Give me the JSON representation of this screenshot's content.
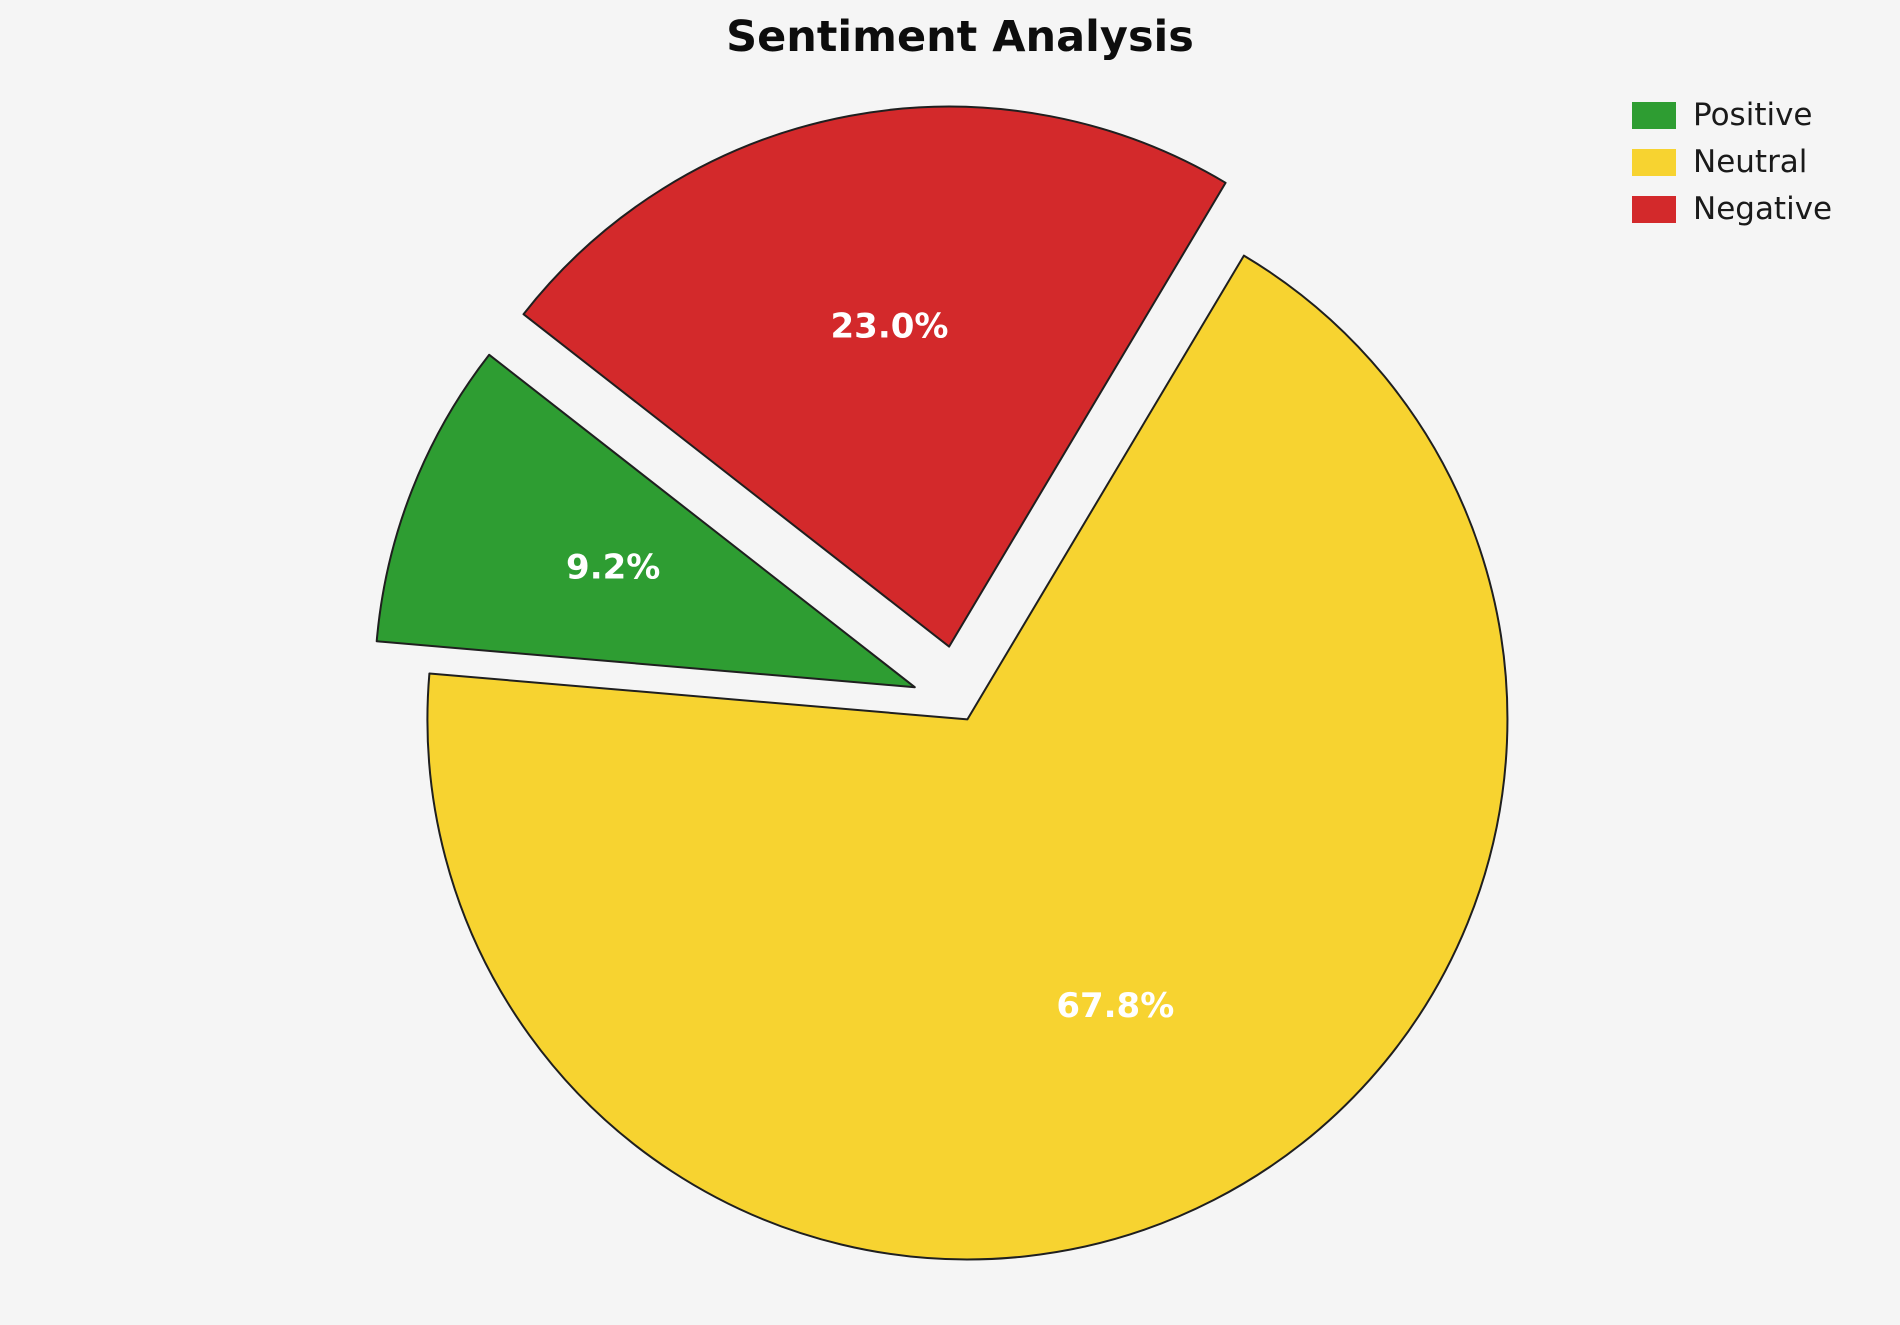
{
  "chart_data": {
    "type": "pie",
    "title": "Sentiment Analysis",
    "labels": [
      "Positive",
      "Neutral",
      "Negative"
    ],
    "values": [
      9.2,
      67.8,
      23.0
    ],
    "pct_labels": [
      "9.2%",
      "67.8%",
      "23.0%"
    ],
    "colors": [
      "#2e9d32",
      "#f7d330",
      "#d3292b"
    ],
    "edge_color": "#1f1f1f",
    "label_color": "#ffffff",
    "background_color": "#f5f5f5",
    "startangle": 142,
    "explode": [
      0.09,
      0.03,
      0.11
    ],
    "pctdistance": 0.6,
    "legend_position": "upper right",
    "legend_entries": [
      "Positive",
      "Neutral",
      "Negative"
    ]
  }
}
